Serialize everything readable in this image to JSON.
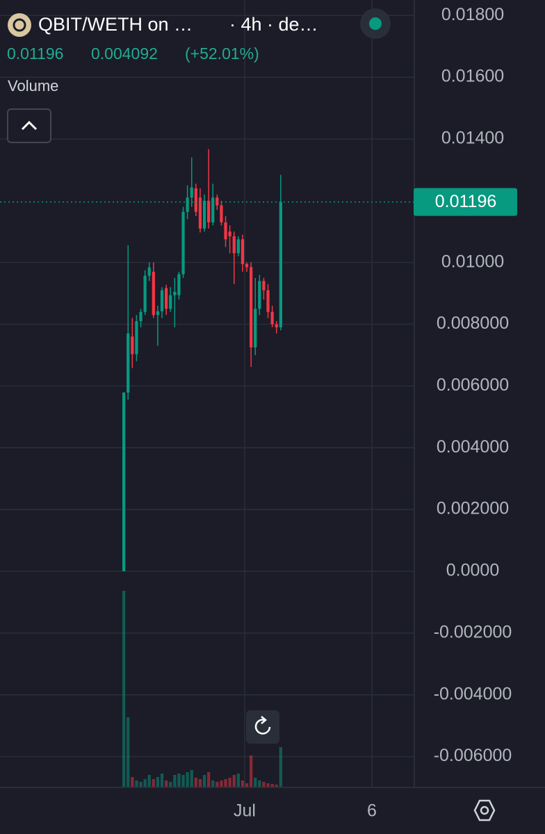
{
  "chart_data": {
    "type": "candlestick",
    "title": "QBIT/WETH on …",
    "subtitle": "· 4h · de…",
    "header_price": 0.01196,
    "header_change": 0.004092,
    "header_change_pct": "(+52.01%)",
    "volume_label": "Volume",
    "up_color": "#089981",
    "down_color": "#f23645",
    "x": [
      0,
      1,
      2,
      3,
      4,
      5,
      6,
      7,
      8,
      9,
      10,
      11,
      12,
      13,
      14,
      15,
      16,
      17,
      18,
      19,
      20,
      21,
      22,
      23,
      24,
      25,
      26,
      27,
      28,
      29,
      30,
      31,
      32,
      33,
      34,
      35,
      36,
      37
    ],
    "open": [
      0,
      0.00579,
      0.0076,
      0.00703,
      0.0081,
      0.0084,
      0.00957,
      0.0097,
      0.0083,
      0.00842,
      0.00917,
      0.0085,
      0.00894,
      0.00894,
      0.00962,
      0.01164,
      0.0121,
      0.0124,
      0.0121,
      0.0111,
      0.012,
      0.0113,
      0.0121,
      0.01185,
      0.0113,
      0.011,
      0.01085,
      0.0103,
      0.01075,
      0.00995,
      0.00985,
      0.00725,
      0.0085,
      0.0094,
      0.0091,
      0.0084,
      0.008,
      0.0079
    ],
    "high": [
      0.00579,
      0.01056,
      0.0082,
      0.0083,
      0.0085,
      0.00975,
      0.01,
      0.01,
      0.0086,
      0.0092,
      0.00928,
      0.0092,
      0.0095,
      0.0097,
      0.0118,
      0.0125,
      0.0134,
      0.01255,
      0.0124,
      0.0122,
      0.01367,
      0.01255,
      0.0122,
      0.012,
      0.0115,
      0.0112,
      0.011,
      0.01085,
      0.0109,
      0.01,
      0.01,
      0.0095,
      0.0096,
      0.0095,
      0.0093,
      0.0086,
      0.0081,
      0.01284
    ],
    "low": [
      0,
      0.00556,
      0.00658,
      0.0068,
      0.0079,
      0.0083,
      0.0094,
      0.0082,
      0.0073,
      0.0082,
      0.0083,
      0.0084,
      0.0079,
      0.0088,
      0.0095,
      0.0114,
      0.0118,
      0.0115,
      0.01097,
      0.011,
      0.0111,
      0.0112,
      0.0117,
      0.0112,
      0.0105,
      0.0103,
      0.0093,
      0.0102,
      0.0097,
      0.0097,
      0.00662,
      0.007,
      0.0083,
      0.0088,
      0.0082,
      0.0079,
      0.0077,
      0.0078
    ],
    "close": [
      0.00579,
      0.0077,
      0.00703,
      0.0081,
      0.0084,
      0.00957,
      0.00984,
      0.0083,
      0.00842,
      0.0091,
      0.0085,
      0.00894,
      0.00905,
      0.00962,
      0.01164,
      0.0121,
      0.01243,
      0.01164,
      0.0111,
      0.012,
      0.0113,
      0.0121,
      0.01185,
      0.0113,
      0.01075,
      0.01085,
      0.0103,
      0.01075,
      0.00995,
      0.00985,
      0.00725,
      0.0085,
      0.0094,
      0.0091,
      0.0084,
      0.008,
      0.0079,
      0.01196
    ],
    "volume": [
      283,
      101,
      15,
      10,
      8,
      12,
      18,
      12,
      15,
      20,
      10,
      8,
      18,
      20,
      18,
      22,
      25,
      14,
      12,
      18,
      22,
      10,
      8,
      10,
      12,
      14,
      18,
      20,
      10,
      6,
      46,
      14,
      10,
      8,
      6,
      5,
      4,
      58
    ],
    "xlim": [
      -29.2,
      68.5
    ],
    "xticks": [
      {
        "value": 28.5,
        "label": "Jul"
      },
      {
        "value": 58.5,
        "label": "6"
      }
    ],
    "ylim": [
      -0.007,
      0.0185
    ],
    "yticks": [
      {
        "value": 0.018,
        "label": "0.01800"
      },
      {
        "value": 0.016,
        "label": "0.01600"
      },
      {
        "value": 0.014,
        "label": "0.01400"
      },
      {
        "value": 0.01,
        "label": "0.01000"
      },
      {
        "value": 0.008,
        "label": "0.008000"
      },
      {
        "value": 0.006,
        "label": "0.006000"
      },
      {
        "value": 0.004,
        "label": "0.004000"
      },
      {
        "value": 0.002,
        "label": "0.002000"
      },
      {
        "value": 0,
        "label": "0.0000"
      },
      {
        "value": -0.002,
        "label": "-0.002000"
      },
      {
        "value": -0.004,
        "label": "-0.004000"
      },
      {
        "value": -0.006,
        "label": "-0.006000"
      }
    ],
    "grid": true
  }
}
